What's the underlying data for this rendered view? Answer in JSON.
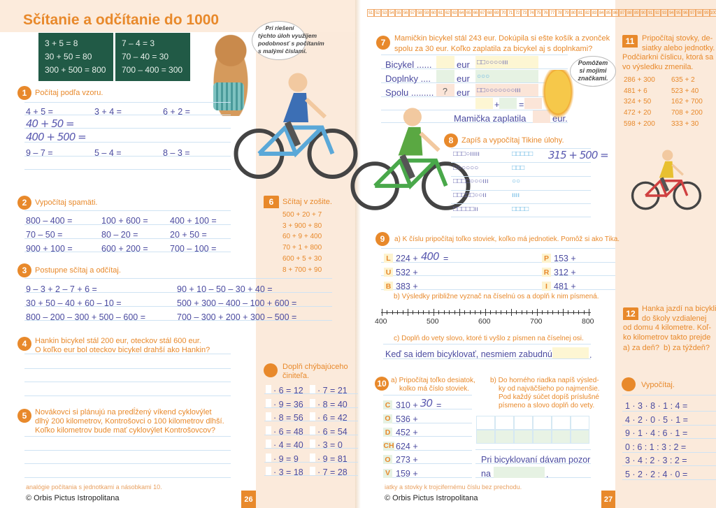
{
  "colors": {
    "accent": "#e8892b",
    "ink": "#4b4ba0",
    "chalkboard": "#215a46",
    "cream": "#fbeadb",
    "rule": "#cfe3f3"
  },
  "left_page": {
    "title": "Sčítanie a odčítanie do 1000",
    "chalkboard": {
      "left": [
        "3 + 5 = 8",
        "30 + 50 = 80",
        "300 + 500 = 800"
      ],
      "right": [
        "7 – 4 = 3",
        "70 – 40 = 30",
        "700 – 400 = 300"
      ]
    },
    "bear_speech": [
      "Pri riešení",
      "týchto úloh využijem",
      "podobnosť s počítaním",
      "s malými číslami."
    ],
    "ex1": {
      "number": "1",
      "instruction": "Počítaj podľa vzoru.",
      "row1": [
        "4 + 5 =",
        "3 + 4 =",
        "6 + 2 ="
      ],
      "handwritten": [
        "40 + 50 =",
        "400 + 500 ="
      ],
      "row2": [
        "9 – 7 =",
        "5 – 4 =",
        "8 – 3 ="
      ]
    },
    "ex2": {
      "number": "2",
      "instruction": "Vypočítaj spamäti.",
      "items": [
        "800 – 400 =",
        "100 + 600 =",
        "400 + 100 =",
        "70 – 50 =",
        "80 – 20 =",
        "20 + 50 =",
        "900 + 100 =",
        "600 + 200 =",
        "700 – 100 ="
      ]
    },
    "ex3": {
      "number": "3",
      "instruction": "Postupne sčítaj a odčítaj.",
      "left": [
        "9 – 3 + 2 – 7 + 6 =",
        "30 + 50 – 40 + 60 – 10 =",
        "800 – 200 – 300 + 500 – 600 ="
      ],
      "right": [
        "90 + 10 – 50 – 30 + 40 =",
        "500 + 300 – 400 – 100 + 600 =",
        "700 – 300 + 200 + 300 – 500 ="
      ]
    },
    "ex4": {
      "number": "4",
      "text": [
        "Hankin bicykel stál 200 eur, oteckov stál 600 eur.",
        "O koľko eur bol oteckov bicykel drahší ako Hankin?"
      ]
    },
    "ex5": {
      "number": "5",
      "text": [
        "Novákovci si plánujú na predĺžený víkend cyklovýlet",
        "dlhý 200 kilometrov, Kontrošovci o 100 kilometrov dlhší.",
        "Koľko kilometrov bude mať cyklovýlet Kontrošovcov?"
      ]
    },
    "ex6": {
      "number": "6",
      "instruction": "Sčítaj v zošite.",
      "items": [
        "500 + 20 + 7",
        "3 + 900 + 80",
        "60 + 9 + 400",
        "70 + 1 + 800",
        "600 + 5 + 30",
        "8 + 700 + 90"
      ]
    },
    "ex_factor": {
      "instruction": [
        "Doplň chýbajúceho",
        "činiteľa."
      ],
      "left": [
        "· 6 = 12",
        "· 9 = 36",
        "· 8 = 56",
        "· 6 = 48",
        "· 4 = 40",
        "· 9 = 9",
        "· 3 = 18"
      ],
      "right": [
        "· 7 = 21",
        "· 8 = 40",
        "· 6 = 42",
        "· 6 = 54",
        "· 3 = 0",
        "· 9 = 81",
        "· 7 = 28"
      ]
    },
    "footer": {
      "copyright": "© Orbis Pictus Istropolitana",
      "note": "analógie počítania s jednotkami a násobkami 10.",
      "page": "26"
    }
  },
  "right_page": {
    "number_strip": {
      "from": 51,
      "to": 100
    },
    "ex7": {
      "number": "7",
      "text": [
        "Mamičkin bicykel stál 243 eur. Dokúpila si ešte košík a zvonček",
        "spolu za 30 eur. Koľko zaplatila za bicykel aj s doplnkami?"
      ],
      "rows": [
        {
          "label": "Bicykel ......",
          "unit": "eur",
          "marks": "□□○○○○ııı"
        },
        {
          "label": "Doplnky ....",
          "unit": "eur",
          "marks": "○○○"
        },
        {
          "label": "Spolu .........",
          "value": "?",
          "unit": "eur",
          "marks": "□□○○○○○○○ııı"
        }
      ],
      "plus": "+",
      "equals": "=",
      "answer_prefix": "Mamička zaplatila",
      "answer_unit": "eur."
    },
    "fish_speech": [
      "Pomôžem",
      "si mojimi",
      "značkami."
    ],
    "ex8": {
      "number": "8",
      "instruction": "Zapíš a vypočítaj Tikine úlohy.",
      "rows": [
        {
          "a": "□□□○ııııı",
          "b": "□□□□□"
        },
        {
          "a": "□○○○○○",
          "b": "□□□"
        },
        {
          "a": "□□□□○○○ııı",
          "b": "○○"
        },
        {
          "a": "□□□□□○○ıı",
          "b": "ıııı"
        },
        {
          "a": "□□□□□ıı",
          "b": "□□□□"
        }
      ],
      "example": "315 + 500 ="
    },
    "ex9": {
      "number": "9",
      "a": "a) K číslu pripočítaj toľko stoviek, koľko má jednotiek. Pomôž si ako Tika.",
      "left": [
        {
          "letter": "L",
          "expr": "224 +",
          "hand": "400",
          "eq": "="
        },
        {
          "letter": "U",
          "expr": "532 +"
        },
        {
          "letter": "B",
          "expr": "383 +"
        }
      ],
      "right": [
        {
          "letter": "P",
          "expr": "153 +"
        },
        {
          "letter": "R",
          "expr": "312 +"
        },
        {
          "letter": "I",
          "expr": "481 +"
        }
      ],
      "b": "b) Výsledky približne vyznač na číselnú os a doplň k nim písmená.",
      "number_line": {
        "min": 400,
        "max": 800,
        "minor_step": 10,
        "major_step": 50,
        "labels": [
          "400",
          "500",
          "600",
          "700",
          "800"
        ]
      },
      "c": "c) Doplň do vety slovo, ktoré ti vyšlo z písmen na číselnej osi.",
      "sentence": "Keď sa idem bicyklovať, nesmiem zabudnúť na",
      "sentence_end": "."
    },
    "ex10": {
      "number": "10",
      "a": [
        "a) Pripočítaj toľko desiatok,",
        "kolko má číslo stoviek."
      ],
      "items": [
        {
          "letter": "C",
          "expr": "310 +",
          "hand": "30",
          "eq": "="
        },
        {
          "letter": "O",
          "expr": "536 +"
        },
        {
          "letter": "D",
          "expr": "452 +"
        },
        {
          "letter": "CH",
          "expr": "624 +"
        },
        {
          "letter": "O",
          "expr": "273 +"
        },
        {
          "letter": "V",
          "expr": "159 +"
        }
      ],
      "b": [
        "b) Do horného riadka napíš výsled-",
        "ky od najväčšieho po najmenšie.",
        "Pod každý súčet dopíš príslušné",
        "písmeno a slovo doplň do vety."
      ],
      "sentence": [
        "Pri bicyklovaní dávam pozor",
        "na"
      ],
      "sentence_end": "."
    },
    "ex11": {
      "number": "11",
      "text": [
        "Pripočítaj stovky, de-",
        "siatky alebo jednotky.",
        "Podčiarkni číslicu, ktorá sa",
        "vo výsledku zmenila."
      ],
      "left": [
        "286 + 300",
        "481 + 6",
        "324 + 50",
        "472 + 20",
        "598 + 200"
      ],
      "right": [
        "635 + 2",
        "523 + 40",
        "162 + 700",
        "708 + 200",
        "333 + 30"
      ]
    },
    "ex12": {
      "number": "12",
      "text": [
        "Hanka jazdí na bicykli",
        "do školy vzdialenej",
        "od domu 4 kilometre. Koľ-",
        "ko kilometrov takto prejde"
      ],
      "a": "a) za deň?",
      "b": "b) za týždeň?"
    },
    "ex_compute": {
      "instruction": "Vypočítaj.",
      "items": [
        "1 · 3 · 8 · 1 : 4 =",
        "4 · 2 · 0 · 5 · 1 =",
        "9 · 1 · 4 : 6 · 1 =",
        "0 : 6 : 1 : 3 : 2 =",
        "3 · 4 : 2 · 3 : 2 =",
        "5 · 2 · 2 : 4 · 0 ="
      ]
    },
    "footer": {
      "copyright": "© Orbis Pictus Istropolitana",
      "note": "iatky a stovky k trojcifernému číslu bez prechodu.",
      "page": "27"
    }
  }
}
